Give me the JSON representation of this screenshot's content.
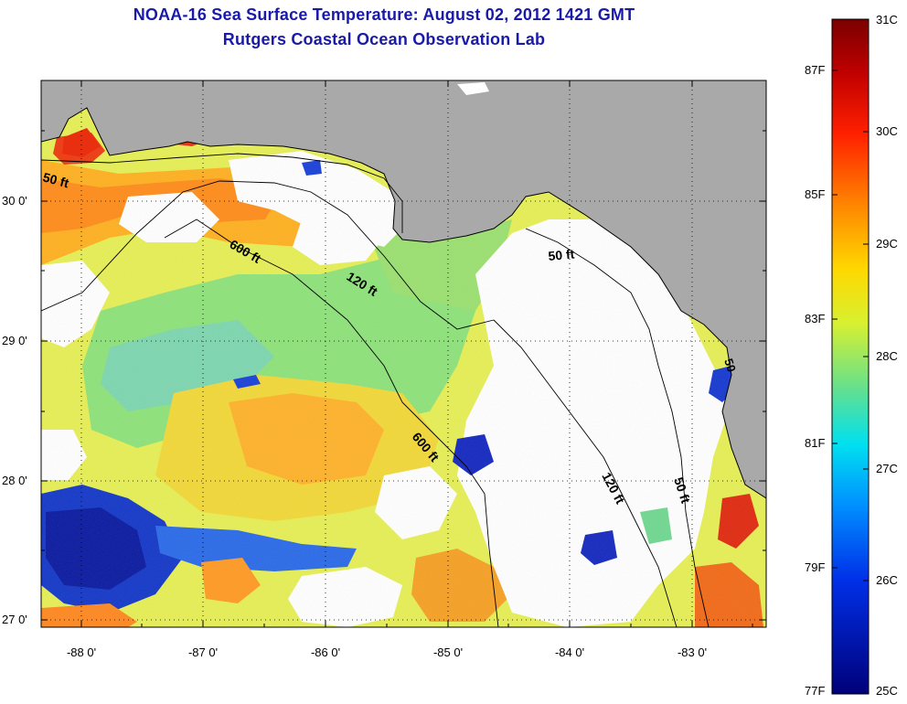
{
  "header": {
    "title_line1": "NOAA-16 Sea Surface Temperature:  August 02, 2012 1421 GMT",
    "title_line2": "Rutgers Coastal Ocean Observation Lab"
  },
  "axes": {
    "latitude_labels": [
      "30 0'",
      "29 0'",
      "28 0'",
      "27 0'"
    ],
    "longitude_labels": [
      "-88 0'",
      "-87 0'",
      "-86 0'",
      "-85 0'",
      "-84 0'",
      "-83 0'"
    ]
  },
  "isobaths": [
    {
      "label": "50 ft"
    },
    {
      "label": "600 ft"
    },
    {
      "label": "120 ft"
    },
    {
      "label": "50 ft"
    },
    {
      "label": "600 ft"
    },
    {
      "label": "120 ft"
    },
    {
      "label": "50 ft"
    },
    {
      "label": "50"
    }
  ],
  "colorbar": {
    "fahrenheit_labels": [
      "87F",
      "85F",
      "83F",
      "81F",
      "79F",
      "77F"
    ],
    "celsius_labels": [
      "31C",
      "30C",
      "29C",
      "28C",
      "27C",
      "26C",
      "25C"
    ],
    "colors": [
      "#7a0000",
      "#d40000",
      "#ff3a00",
      "#ff8a00",
      "#ffd000",
      "#d8f030",
      "#7ae070",
      "#30d8c8",
      "#00c8ff",
      "#0070ff",
      "#0018d0",
      "#00007a"
    ]
  },
  "colors": {
    "land": "#a9a9a9",
    "cloud": "#ffffff",
    "title": "#1a1aa8"
  }
}
